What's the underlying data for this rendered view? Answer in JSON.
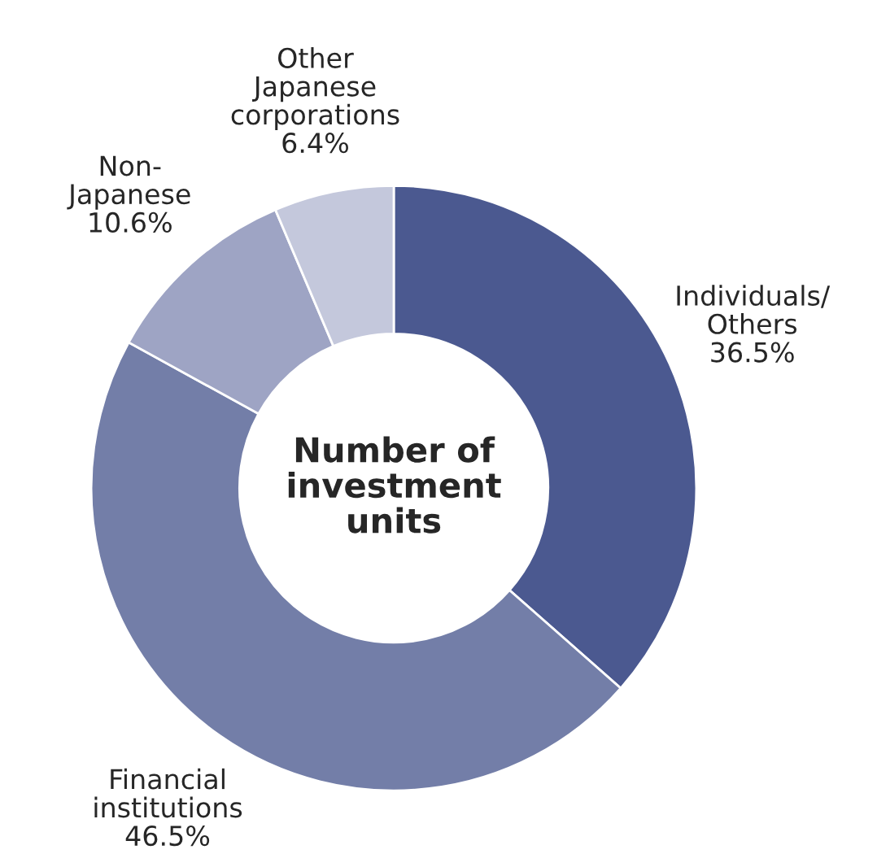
{
  "chart_data": {
    "type": "donut",
    "categories": [
      "Individuals/\nOthers",
      "Financial\ninstitutions",
      "Non-\nJapanese",
      "Other\nJapanese\ncorporations"
    ],
    "values": [
      36.5,
      46.5,
      10.6,
      6.4
    ],
    "value_labels": [
      "36.5%",
      "46.5%",
      "10.6%",
      "6.4%"
    ],
    "colors": [
      "#4b5990",
      "#737ea8",
      "#9ea4c4",
      "#c4c8dc"
    ],
    "annotations": [
      "Number of\ninvestment\nunits"
    ],
    "legend": false
  }
}
